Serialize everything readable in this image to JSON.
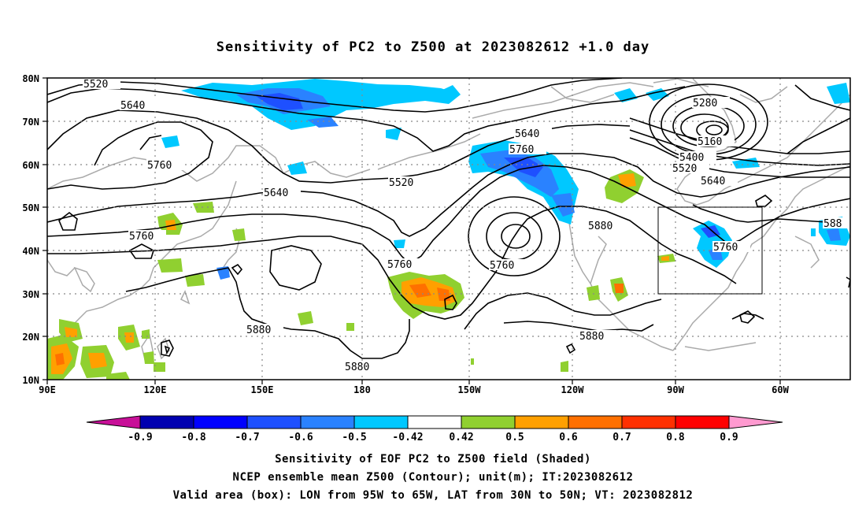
{
  "title": "Sensitivity of PC2 to Z500 at 2023082612 +1.0 day",
  "lat_labels": [
    "80N",
    "70N",
    "60N",
    "50N",
    "40N",
    "30N",
    "20N",
    "10N"
  ],
  "lon_labels": [
    "90E",
    "120E",
    "150E",
    "180",
    "150W",
    "120W",
    "90W",
    "60W"
  ],
  "contour_labels": {
    "c5520a": "5520",
    "c5640a": "5640",
    "c5760a": "5760",
    "c5640b": "5640",
    "c5760b": "5760",
    "c5520b": "5520",
    "c5640c": "5640",
    "c5760c": "5760",
    "c5760d": "5760",
    "c5880a": "5880",
    "c5880b": "5880",
    "c5760e": "5760",
    "c5880c": "5880",
    "c5880d": "5880",
    "c5280": "5280",
    "c5160": "5160",
    "c5400": "5400",
    "c5520c": "5520",
    "c5640d": "5640",
    "c5760f": "5760",
    "c588": "588"
  },
  "colorbar": {
    "labels": [
      "-0.9",
      "-0.8",
      "-0.7",
      "-0.6",
      "-0.5",
      "-0.42",
      "0.42",
      "0.5",
      "0.6",
      "0.7",
      "0.8",
      "0.9"
    ],
    "colors": [
      "#c81098",
      "#0000b0",
      "#0000ff",
      "#1e50ff",
      "#2a82ff",
      "#00c8ff",
      "#ffffff",
      "#90d030",
      "#ffa000",
      "#ff7000",
      "#ff3000",
      "#ff0000",
      "#ff9ad0"
    ]
  },
  "footer": {
    "line1": "Sensitivity of EOF PC2 to Z500 field (Shaded)",
    "line2": "NCEP ensemble mean Z500 (Contour); unit(m); IT:2023082612",
    "line3": "Valid area (box): LON from 95W to 65W, LAT from 30N to 50N; VT: 2023082812"
  }
}
